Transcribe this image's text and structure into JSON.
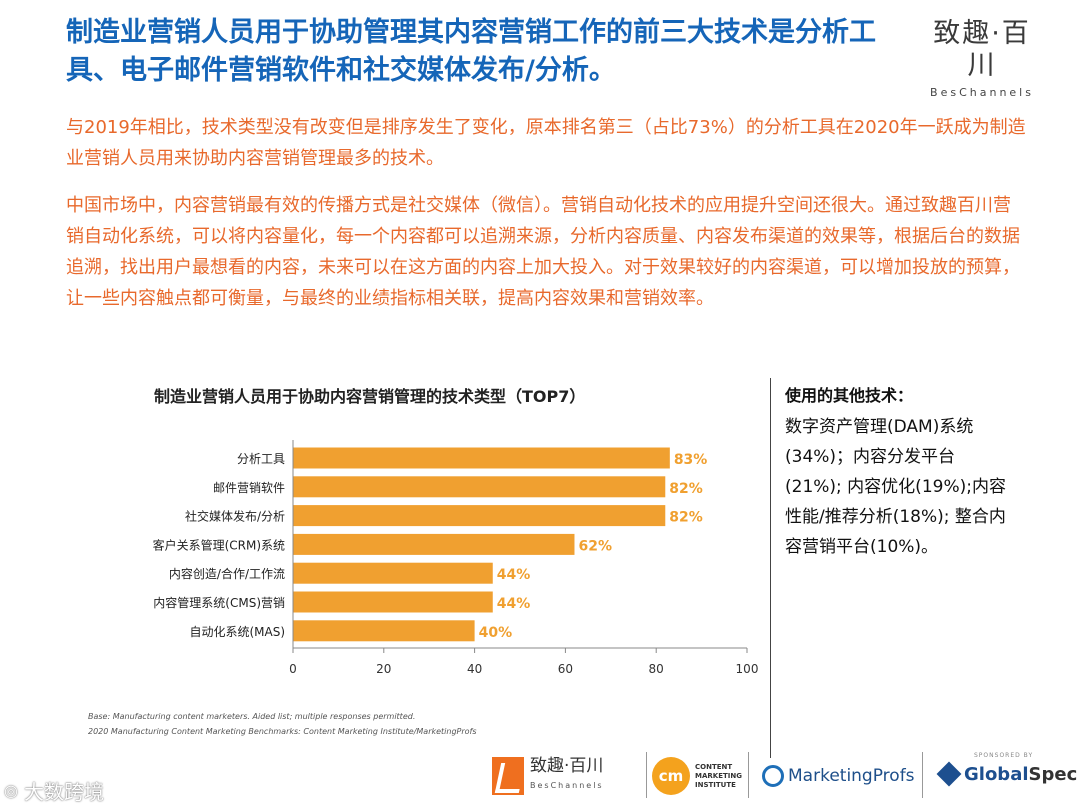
{
  "header": {
    "title": "制造业营销人员用于协助管理其内容营销工作的前三大技术是分析工具、电子邮件营销软件和社交媒体发布/分析。",
    "brand_cn": "致趣·百川",
    "brand_en": "BesChannels"
  },
  "body": {
    "paragraph1": "与2019年相比，技术类型没有改变但是排序发生了变化，原本排名第三（占比73%）的分析工具在2020年一跃成为制造业营销人员用来协助内容营销管理最多的技术。",
    "paragraph2": "中国市场中，内容营销最有效的传播方式是社交媒体（微信）。营销自动化技术的应用提升空间还很大。通过致趣百川营销自动化系统，可以将内容量化，每一个内容都可以追溯来源，分析内容质量、内容发布渠道的效果等，根据后台的数据追溯，找出用户最想看的内容，未来可以在这方面的内容上加大投入。对于效果较好的内容渠道，可以增加投放的预算，让一些内容触点都可衡量，与最终的业绩指标相关联，提高内容效果和营销效率。"
  },
  "chart_data": {
    "type": "bar",
    "orientation": "horizontal",
    "title": "制造业营销人员用于协助内容营销管理的技术类型（TOP7）",
    "categories": [
      "分析工具",
      "邮件营销软件",
      "社交媒体发布/分析",
      "客户关系管理(CRM)系统",
      "内容创造/合作/工作流",
      "内容管理系统(CMS)营销",
      "自动化系统(MAS)"
    ],
    "values": [
      83,
      82,
      82,
      62,
      44,
      44,
      40
    ],
    "value_labels": [
      "83%",
      "82%",
      "82%",
      "62%",
      "44%",
      "44%",
      "40%"
    ],
    "xlim": [
      0,
      100
    ],
    "xticks": [
      0,
      20,
      40,
      60,
      80,
      100
    ],
    "xtick_labels": [
      "0",
      "20",
      "40",
      "60",
      "80",
      "100"
    ],
    "grid": false,
    "bar_color": "#f0a030",
    "label_color": "#f0a030"
  },
  "notes": {
    "base": "Base: Manufacturing content marketers. Aided list; multiple responses permitted.",
    "source": "2020 Manufacturing Content Marketing Benchmarks: Content Marketing Institute/MarketingProfs"
  },
  "sidebar": {
    "title": "使用的其他技术：",
    "text": "数字资产管理(DAM)系统(34%)；内容分发平台(21%); 内容优化(19%);内容性能/推荐分析(18%); 整合内容营销平台(10%)。"
  },
  "footer": {
    "bes_cn": "致趣·百川",
    "bes_en": "BesChannels",
    "cmi_mark": "cm",
    "cmi_line1": "CONTENT",
    "cmi_line2": "MARKETING",
    "cmi_line3": "INSTITUTE",
    "mp_text": "MarketingProfs",
    "gs_sponsor": "SPONSORED BY",
    "gs_global": "Global",
    "gs_spec": "Spec"
  },
  "watermark": {
    "icon": "weibo-icon",
    "text": "大数跨境"
  },
  "colors": {
    "title_blue": "#1565b8",
    "body_orange": "#e8692c",
    "bar_orange": "#f0a030"
  }
}
